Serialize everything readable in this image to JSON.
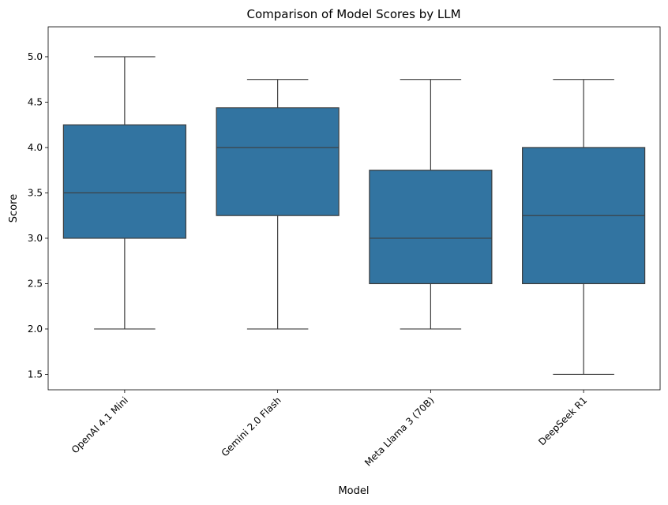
{
  "chart_data": {
    "type": "box",
    "title": "Comparison of Model Scores by LLM",
    "xlabel": "Model",
    "ylabel": "Score",
    "ylim": [
      1.33,
      5.33
    ],
    "yticks": [
      1.5,
      2.0,
      2.5,
      3.0,
      3.5,
      4.0,
      4.5,
      5.0
    ],
    "ytick_labels": [
      "1.5",
      "2.0",
      "2.5",
      "3.0",
      "3.5",
      "4.0",
      "4.5",
      "5.0"
    ],
    "categories": [
      "OpenAI 4.1 Mini",
      "Gemini 2.0 Flash",
      "Meta Llama 3 (70B)",
      "DeepSeek R1"
    ],
    "boxes": [
      {
        "label": "OpenAI 4.1 Mini",
        "whisker_low": 2.0,
        "q1": 3.0,
        "median": 3.5,
        "q3": 4.25,
        "whisker_high": 5.0
      },
      {
        "label": "Gemini 2.0 Flash",
        "whisker_low": 2.0,
        "q1": 3.25,
        "median": 4.0,
        "q3": 4.4375,
        "whisker_high": 4.75
      },
      {
        "label": "Meta Llama 3 (70B)",
        "whisker_low": 2.0,
        "q1": 2.5,
        "median": 3.0,
        "q3": 3.75,
        "whisker_high": 4.75
      },
      {
        "label": "DeepSeek R1",
        "whisker_low": 1.5,
        "q1": 2.5,
        "median": 3.25,
        "q3": 4.0,
        "whisker_high": 4.75
      }
    ],
    "box_color": "#3274a1",
    "line_color": "#3d3d3d",
    "grid": false,
    "xtick_rotation": 45
  }
}
